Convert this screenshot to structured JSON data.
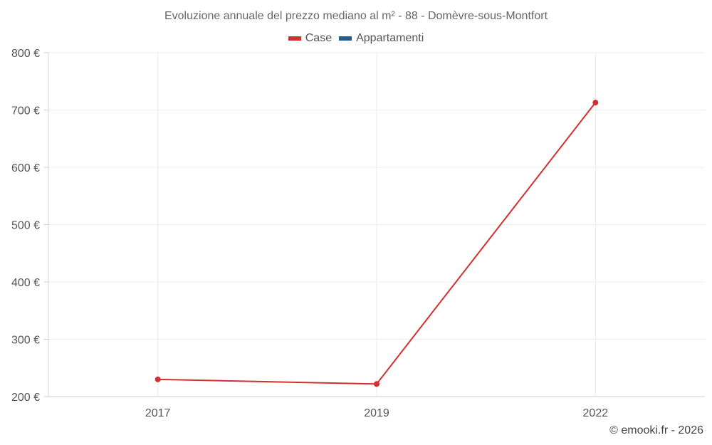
{
  "chart_data": {
    "type": "line",
    "title": "Evoluzione annuale del prezzo mediano al m² - 88 - Domèvre-sous-Montfort",
    "categories": [
      "2017",
      "2019",
      "2022"
    ],
    "series": [
      {
        "name": "Case",
        "color": "#d32f2f",
        "values": [
          230,
          222,
          713
        ]
      },
      {
        "name": "Appartamenti",
        "color": "#1a5f9a",
        "values": [
          null,
          null,
          null
        ]
      }
    ],
    "ylim": [
      200,
      800
    ],
    "yticks": [
      200,
      300,
      400,
      500,
      600,
      700,
      800
    ],
    "ytick_labels": [
      "200 €",
      "300 €",
      "400 €",
      "500 €",
      "600 €",
      "700 €",
      "800 €"
    ],
    "xlabel": "",
    "ylabel": "",
    "grid": true,
    "legend_position": "top-center"
  },
  "footer": "© emooki.fr - 2026"
}
